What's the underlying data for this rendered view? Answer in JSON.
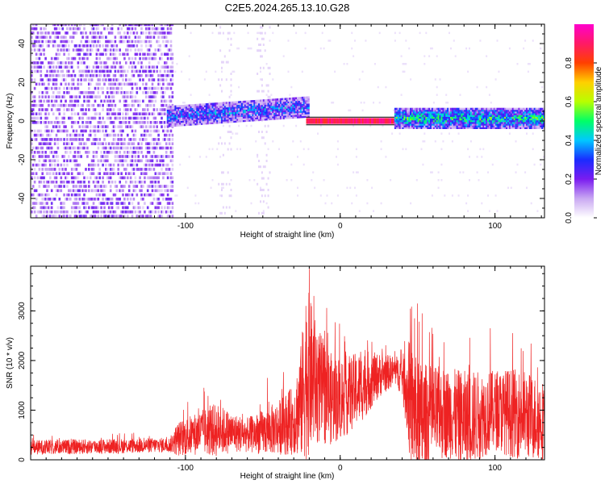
{
  "title": "C2E5.2024.265.13.10.G28",
  "chart_data": [
    {
      "type": "heatmap",
      "name": "spectrogram",
      "xlabel": "Height of straight line (km)",
      "ylabel": "Frequency (Hz)",
      "xlim": [
        -200,
        132
      ],
      "ylim": [
        -50,
        50
      ],
      "xticks": [
        -100,
        0,
        100
      ],
      "xtick_labels": [
        "-100",
        "0",
        "100"
      ],
      "yticks": [
        -40,
        -20,
        0,
        20,
        40
      ],
      "ytick_labels": [
        "-40",
        "-20",
        "0",
        "20",
        "40"
      ],
      "grid": false,
      "colorbar": {
        "label": "Normalized spectral amplitude",
        "range": [
          0,
          1
        ],
        "ticks": [
          0.0,
          0.2,
          0.4,
          0.6,
          0.8
        ],
        "tick_labels": [
          "0.0",
          "0.2",
          "0.4",
          "0.6",
          "0.8"
        ],
        "colormap_stops": [
          "#ffffff",
          "#c9a8f2",
          "#7a1cf0",
          "#1a2cff",
          "#00c8ff",
          "#00ff66",
          "#b8ff00",
          "#ffd000",
          "#ff4000",
          "#ff1a66",
          "#ff00cc"
        ]
      },
      "regions": [
        {
          "x_range": [
            -200,
            -108
          ],
          "freq_range": [
            -50,
            50
          ],
          "amplitude": 0.08,
          "description_key": "broadband noise"
        },
        {
          "x_range": [
            -112,
            -20
          ],
          "freq_center_start": 2,
          "freq_center_end": 7,
          "freq_halfwidth": 4,
          "amplitude": 0.3
        },
        {
          "x_range": [
            -22,
            35
          ],
          "freq_center": 0,
          "freq_halfwidth": 1.5,
          "amplitude": 0.9
        },
        {
          "x_range": [
            35,
            132
          ],
          "freq_center": 1,
          "freq_halfwidth": 4,
          "amplitude": 0.45
        }
      ],
      "bracket_line": {
        "x_range": [
          -22,
          35
        ],
        "freq": 0
      }
    },
    {
      "type": "line",
      "name": "snr",
      "xlabel": "Height of straight line (km)",
      "ylabel": "SNR (10 * v/v)",
      "xlim": [
        -200,
        132
      ],
      "ylim": [
        0,
        3900
      ],
      "xticks": [
        -100,
        0,
        100
      ],
      "xtick_labels": [
        "-100",
        "0",
        "100"
      ],
      "yticks": [
        0,
        1000,
        2000,
        3000
      ],
      "ytick_labels": [
        "0",
        "1000",
        "2000",
        "3000"
      ],
      "grid": false,
      "color": "#ee2222",
      "envelope": {
        "x": [
          -200,
          -150,
          -110,
          -105,
          -90,
          -80,
          -70,
          -60,
          -50,
          -40,
          -30,
          -25,
          -22,
          -15,
          -5,
          5,
          15,
          25,
          35,
          40,
          45,
          50,
          60,
          70,
          80,
          90,
          100,
          110,
          120,
          132
        ],
        "base": [
          250,
          270,
          300,
          420,
          550,
          600,
          550,
          500,
          550,
          650,
          800,
          1200,
          1800,
          1500,
          1200,
          1300,
          1500,
          1700,
          1800,
          1700,
          1200,
          700,
          900,
          950,
          800,
          900,
          1000,
          950,
          900,
          800
        ],
        "swing": [
          150,
          150,
          150,
          350,
          450,
          550,
          400,
          350,
          450,
          550,
          700,
          1200,
          1800,
          1200,
          900,
          800,
          700,
          450,
          300,
          400,
          1200,
          1300,
          1000,
          900,
          1000,
          900,
          800,
          900,
          900,
          800
        ]
      },
      "peaks": [
        {
          "x": -20,
          "y": 3850
        },
        {
          "x": -17,
          "y": 3300
        },
        {
          "x": 50,
          "y": 3150
        },
        {
          "x": 53,
          "y": 2950
        },
        {
          "x": 48,
          "y": 2850
        },
        {
          "x": -88,
          "y": 1450
        },
        {
          "x": -47,
          "y": 1650
        },
        {
          "x": -10,
          "y": 2600
        },
        {
          "x": 97,
          "y": 2650
        }
      ]
    }
  ]
}
